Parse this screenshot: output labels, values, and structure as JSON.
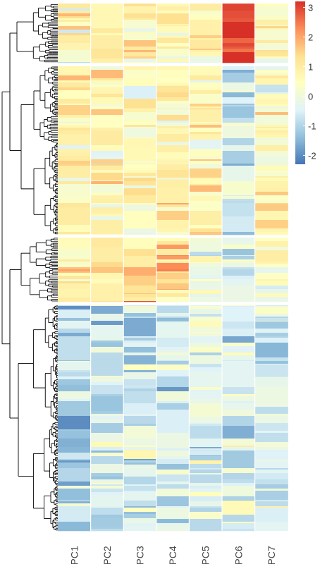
{
  "chart_data": {
    "type": "heatmap",
    "title": "",
    "columns": [
      "PC1",
      "PC2",
      "PC3",
      "PC4",
      "PC5",
      "PC6",
      "PC7"
    ],
    "row_clusters": 4,
    "row_dendrogram": true,
    "legend": {
      "position": "top-right",
      "ticks": [
        "3",
        "2",
        "1",
        "0",
        "-1",
        "-2"
      ],
      "range": [
        -2.3,
        3.2
      ],
      "colors": [
        "#4575b4",
        "#91bfdb",
        "#e0f3f8",
        "#ffffbf",
        "#fee090",
        "#fc8d59",
        "#d73027"
      ]
    },
    "cluster_means": [
      {
        "cluster": 1,
        "values": [
          0.6,
          0.4,
          0.9,
          0.7,
          1.0,
          3.0,
          0.5
        ]
      },
      {
        "cluster": 2,
        "values": [
          0.7,
          0.6,
          0.5,
          0.7,
          0.6,
          -0.5,
          0.4
        ]
      },
      {
        "cluster": 3,
        "values": [
          0.6,
          0.9,
          1.6,
          1.2,
          0.1,
          -0.3,
          0.4
        ]
      },
      {
        "cluster": 4,
        "values": [
          -0.8,
          -0.7,
          -0.6,
          -0.6,
          -0.4,
          -0.3,
          -0.6
        ]
      }
    ]
  }
}
